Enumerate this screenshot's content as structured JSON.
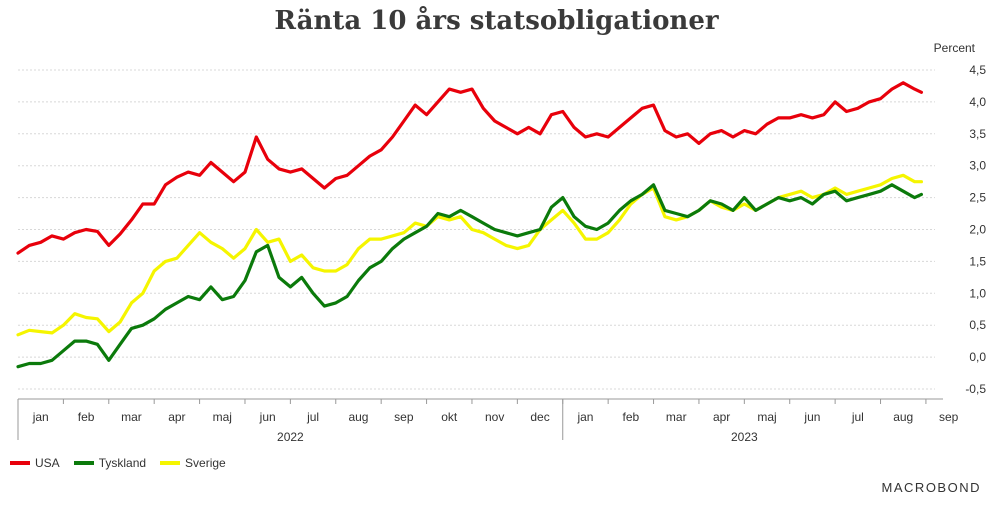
{
  "brand": "MACROBOND",
  "chart_data": {
    "type": "line",
    "title": "Ränta 10 års statsobligationer",
    "ylabel": "Percent",
    "ylim": [
      -0.5,
      4.5
    ],
    "yticks": [
      4.5,
      4.0,
      3.5,
      3.0,
      2.5,
      2.0,
      1.5,
      1.0,
      0.5,
      0.0,
      -0.5
    ],
    "ytick_labels": [
      "4,5",
      "4,0",
      "3,5",
      "3,0",
      "2,5",
      "2,0",
      "1,5",
      "1,0",
      "0,5",
      "0,0",
      "-0,5"
    ],
    "month_labels": [
      "jan",
      "feb",
      "mar",
      "apr",
      "maj",
      "jun",
      "jul",
      "aug",
      "sep",
      "okt",
      "nov",
      "dec",
      "jan",
      "feb",
      "mar",
      "apr",
      "maj",
      "jun",
      "jul",
      "aug",
      "sep"
    ],
    "year_labels": [
      "2022",
      "2023"
    ],
    "grid": true,
    "legend_position": "bottom-left",
    "x_unit": "months since start of 2022",
    "series": [
      {
        "name": "USA",
        "color": "#e8000b",
        "points": [
          [
            0,
            1.63
          ],
          [
            0.25,
            1.75
          ],
          [
            0.5,
            1.8
          ],
          [
            0.75,
            1.9
          ],
          [
            1.0,
            1.85
          ],
          [
            1.25,
            1.95
          ],
          [
            1.5,
            2.0
          ],
          [
            1.75,
            1.97
          ],
          [
            2.0,
            1.75
          ],
          [
            2.25,
            1.93
          ],
          [
            2.5,
            2.15
          ],
          [
            2.75,
            2.4
          ],
          [
            3.0,
            2.4
          ],
          [
            3.25,
            2.7
          ],
          [
            3.5,
            2.82
          ],
          [
            3.75,
            2.9
          ],
          [
            4.0,
            2.85
          ],
          [
            4.25,
            3.05
          ],
          [
            4.5,
            2.9
          ],
          [
            4.75,
            2.75
          ],
          [
            5.0,
            2.9
          ],
          [
            5.25,
            3.45
          ],
          [
            5.5,
            3.1
          ],
          [
            5.75,
            2.95
          ],
          [
            6.0,
            2.9
          ],
          [
            6.25,
            2.95
          ],
          [
            6.5,
            2.8
          ],
          [
            6.75,
            2.65
          ],
          [
            7.0,
            2.8
          ],
          [
            7.25,
            2.85
          ],
          [
            7.5,
            3.0
          ],
          [
            7.75,
            3.15
          ],
          [
            8.0,
            3.25
          ],
          [
            8.25,
            3.45
          ],
          [
            8.5,
            3.7
          ],
          [
            8.75,
            3.95
          ],
          [
            9.0,
            3.8
          ],
          [
            9.25,
            4.0
          ],
          [
            9.5,
            4.2
          ],
          [
            9.75,
            4.15
          ],
          [
            10.0,
            4.2
          ],
          [
            10.25,
            3.9
          ],
          [
            10.5,
            3.7
          ],
          [
            10.75,
            3.6
          ],
          [
            11.0,
            3.5
          ],
          [
            11.25,
            3.6
          ],
          [
            11.5,
            3.5
          ],
          [
            11.75,
            3.8
          ],
          [
            12.0,
            3.85
          ],
          [
            12.25,
            3.6
          ],
          [
            12.5,
            3.45
          ],
          [
            12.75,
            3.5
          ],
          [
            13.0,
            3.45
          ],
          [
            13.25,
            3.6
          ],
          [
            13.5,
            3.75
          ],
          [
            13.75,
            3.9
          ],
          [
            14.0,
            3.95
          ],
          [
            14.25,
            3.55
          ],
          [
            14.5,
            3.45
          ],
          [
            14.75,
            3.5
          ],
          [
            15.0,
            3.35
          ],
          [
            15.25,
            3.5
          ],
          [
            15.5,
            3.55
          ],
          [
            15.75,
            3.45
          ],
          [
            16.0,
            3.55
          ],
          [
            16.25,
            3.5
          ],
          [
            16.5,
            3.65
          ],
          [
            16.75,
            3.75
          ],
          [
            17.0,
            3.75
          ],
          [
            17.25,
            3.8
          ],
          [
            17.5,
            3.75
          ],
          [
            17.75,
            3.8
          ],
          [
            18.0,
            4.0
          ],
          [
            18.25,
            3.85
          ],
          [
            18.5,
            3.9
          ],
          [
            18.75,
            4.0
          ],
          [
            19.0,
            4.05
          ],
          [
            19.25,
            4.2
          ],
          [
            19.5,
            4.3
          ],
          [
            19.75,
            4.2
          ],
          [
            19.9,
            4.15
          ]
        ]
      },
      {
        "name": "Tyskland",
        "color": "#0b7a0b",
        "points": [
          [
            0,
            -0.15
          ],
          [
            0.25,
            -0.1
          ],
          [
            0.5,
            -0.1
          ],
          [
            0.75,
            -0.05
          ],
          [
            1.0,
            0.1
          ],
          [
            1.25,
            0.25
          ],
          [
            1.5,
            0.25
          ],
          [
            1.75,
            0.2
          ],
          [
            2.0,
            -0.05
          ],
          [
            2.25,
            0.2
          ],
          [
            2.5,
            0.45
          ],
          [
            2.75,
            0.5
          ],
          [
            3.0,
            0.6
          ],
          [
            3.25,
            0.75
          ],
          [
            3.5,
            0.85
          ],
          [
            3.75,
            0.95
          ],
          [
            4.0,
            0.9
          ],
          [
            4.25,
            1.1
          ],
          [
            4.5,
            0.9
          ],
          [
            4.75,
            0.95
          ],
          [
            5.0,
            1.2
          ],
          [
            5.25,
            1.65
          ],
          [
            5.5,
            1.75
          ],
          [
            5.75,
            1.25
          ],
          [
            6.0,
            1.1
          ],
          [
            6.25,
            1.25
          ],
          [
            6.5,
            1.0
          ],
          [
            6.75,
            0.8
          ],
          [
            7.0,
            0.85
          ],
          [
            7.25,
            0.95
          ],
          [
            7.5,
            1.2
          ],
          [
            7.75,
            1.4
          ],
          [
            8.0,
            1.5
          ],
          [
            8.25,
            1.7
          ],
          [
            8.5,
            1.85
          ],
          [
            8.75,
            1.95
          ],
          [
            9.0,
            2.05
          ],
          [
            9.25,
            2.25
          ],
          [
            9.5,
            2.2
          ],
          [
            9.75,
            2.3
          ],
          [
            10.0,
            2.2
          ],
          [
            10.25,
            2.1
          ],
          [
            10.5,
            2.0
          ],
          [
            10.75,
            1.95
          ],
          [
            11.0,
            1.9
          ],
          [
            11.25,
            1.95
          ],
          [
            11.5,
            2.0
          ],
          [
            11.75,
            2.35
          ],
          [
            12.0,
            2.5
          ],
          [
            12.25,
            2.2
          ],
          [
            12.5,
            2.05
          ],
          [
            12.75,
            2.0
          ],
          [
            13.0,
            2.1
          ],
          [
            13.25,
            2.3
          ],
          [
            13.5,
            2.45
          ],
          [
            13.75,
            2.55
          ],
          [
            14.0,
            2.7
          ],
          [
            14.25,
            2.3
          ],
          [
            14.5,
            2.25
          ],
          [
            14.75,
            2.2
          ],
          [
            15.0,
            2.3
          ],
          [
            15.25,
            2.45
          ],
          [
            15.5,
            2.4
          ],
          [
            15.75,
            2.3
          ],
          [
            16.0,
            2.5
          ],
          [
            16.25,
            2.3
          ],
          [
            16.5,
            2.4
          ],
          [
            16.75,
            2.5
          ],
          [
            17.0,
            2.45
          ],
          [
            17.25,
            2.5
          ],
          [
            17.5,
            2.4
          ],
          [
            17.75,
            2.55
          ],
          [
            18.0,
            2.6
          ],
          [
            18.25,
            2.45
          ],
          [
            18.5,
            2.5
          ],
          [
            18.75,
            2.55
          ],
          [
            19.0,
            2.6
          ],
          [
            19.25,
            2.7
          ],
          [
            19.5,
            2.6
          ],
          [
            19.75,
            2.5
          ],
          [
            19.9,
            2.55
          ]
        ]
      },
      {
        "name": "Sverige",
        "color": "#f5f500",
        "points": [
          [
            0,
            0.35
          ],
          [
            0.25,
            0.42
          ],
          [
            0.5,
            0.4
          ],
          [
            0.75,
            0.38
          ],
          [
            1.0,
            0.5
          ],
          [
            1.25,
            0.68
          ],
          [
            1.5,
            0.62
          ],
          [
            1.75,
            0.6
          ],
          [
            2.0,
            0.4
          ],
          [
            2.25,
            0.55
          ],
          [
            2.5,
            0.85
          ],
          [
            2.75,
            1.0
          ],
          [
            3.0,
            1.35
          ],
          [
            3.25,
            1.5
          ],
          [
            3.5,
            1.55
          ],
          [
            3.75,
            1.75
          ],
          [
            4.0,
            1.95
          ],
          [
            4.25,
            1.8
          ],
          [
            4.5,
            1.7
          ],
          [
            4.75,
            1.55
          ],
          [
            5.0,
            1.7
          ],
          [
            5.25,
            2.0
          ],
          [
            5.5,
            1.8
          ],
          [
            5.75,
            1.85
          ],
          [
            6.0,
            1.5
          ],
          [
            6.25,
            1.6
          ],
          [
            6.5,
            1.4
          ],
          [
            6.75,
            1.35
          ],
          [
            7.0,
            1.35
          ],
          [
            7.25,
            1.45
          ],
          [
            7.5,
            1.7
          ],
          [
            7.75,
            1.85
          ],
          [
            8.0,
            1.85
          ],
          [
            8.25,
            1.9
          ],
          [
            8.5,
            1.95
          ],
          [
            8.75,
            2.1
          ],
          [
            9.0,
            2.05
          ],
          [
            9.25,
            2.2
          ],
          [
            9.5,
            2.15
          ],
          [
            9.75,
            2.2
          ],
          [
            10.0,
            2.0
          ],
          [
            10.25,
            1.95
          ],
          [
            10.5,
            1.85
          ],
          [
            10.75,
            1.75
          ],
          [
            11.0,
            1.7
          ],
          [
            11.25,
            1.75
          ],
          [
            11.5,
            2.0
          ],
          [
            11.75,
            2.15
          ],
          [
            12.0,
            2.3
          ],
          [
            12.25,
            2.1
          ],
          [
            12.5,
            1.85
          ],
          [
            12.75,
            1.85
          ],
          [
            13.0,
            1.95
          ],
          [
            13.25,
            2.15
          ],
          [
            13.5,
            2.4
          ],
          [
            13.75,
            2.55
          ],
          [
            14.0,
            2.65
          ],
          [
            14.25,
            2.2
          ],
          [
            14.5,
            2.15
          ],
          [
            14.75,
            2.2
          ],
          [
            15.0,
            2.3
          ],
          [
            15.25,
            2.45
          ],
          [
            15.5,
            2.35
          ],
          [
            15.75,
            2.3
          ],
          [
            16.0,
            2.4
          ],
          [
            16.25,
            2.3
          ],
          [
            16.5,
            2.4
          ],
          [
            16.75,
            2.5
          ],
          [
            17.0,
            2.55
          ],
          [
            17.25,
            2.6
          ],
          [
            17.5,
            2.5
          ],
          [
            17.75,
            2.55
          ],
          [
            18.0,
            2.65
          ],
          [
            18.25,
            2.55
          ],
          [
            18.5,
            2.6
          ],
          [
            18.75,
            2.65
          ],
          [
            19.0,
            2.7
          ],
          [
            19.25,
            2.8
          ],
          [
            19.5,
            2.85
          ],
          [
            19.75,
            2.75
          ],
          [
            19.9,
            2.75
          ]
        ]
      }
    ]
  }
}
